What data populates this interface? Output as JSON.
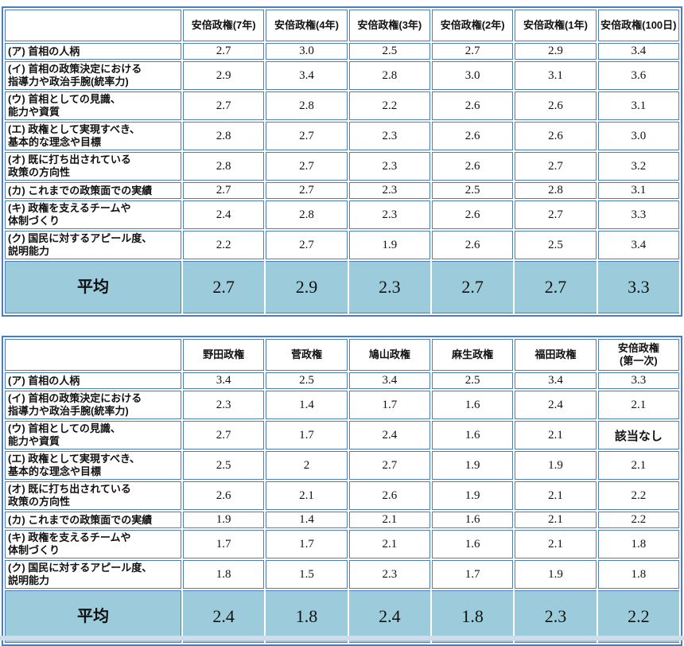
{
  "colors": {
    "table_border": "#4a7ebb",
    "average_row_background": "#9cccdb",
    "bottom_bar": "#cfdce9",
    "cell_background": "#ffffff"
  },
  "chart_data": [
    {
      "type": "table",
      "title": "",
      "columns": [
        "",
        "安倍政権(7年)",
        "安倍政権(4年)",
        "安倍政権(3年)",
        "安倍政権(2年)",
        "安倍政権(1年)",
        "安倍政権(100日)"
      ],
      "rows": [
        {
          "label": "(ア) 首相の人柄",
          "values": [
            "2.7",
            "3.0",
            "2.5",
            "2.7",
            "2.9",
            "3.4"
          ]
        },
        {
          "label": "(イ) 首相の政策決定における\n指導力や政治手腕(統率力)",
          "values": [
            "2.9",
            "3.4",
            "2.8",
            "3.0",
            "3.1",
            "3.6"
          ]
        },
        {
          "label": "(ウ) 首相としての見識、\n能力や資質",
          "values": [
            "2.7",
            "2.8",
            "2.2",
            "2.6",
            "2.6",
            "3.1"
          ]
        },
        {
          "label": "(エ) 政権として実現すべき、\n基本的な理念や目標",
          "values": [
            "2.8",
            "2.7",
            "2.3",
            "2.6",
            "2.6",
            "3.0"
          ]
        },
        {
          "label": "(オ) 既に打ち出されている\n政策の方向性",
          "values": [
            "2.8",
            "2.7",
            "2.3",
            "2.6",
            "2.7",
            "3.2"
          ]
        },
        {
          "label": "(カ) これまでの政策面での実績",
          "values": [
            "2.7",
            "2.7",
            "2.3",
            "2.5",
            "2.8",
            "3.1"
          ]
        },
        {
          "label": "(キ) 政権を支えるチームや\n体制づくり",
          "values": [
            "2.4",
            "2.8",
            "2.3",
            "2.6",
            "2.7",
            "3.3"
          ]
        },
        {
          "label": "(ク) 国民に対するアピール度、\n説明能力",
          "values": [
            "2.2",
            "2.7",
            "1.9",
            "2.6",
            "2.5",
            "3.4"
          ]
        }
      ],
      "avg": {
        "label": "平均",
        "values": [
          "2.7",
          "2.9",
          "2.3",
          "2.7",
          "2.7",
          "3.3"
        ]
      }
    },
    {
      "type": "table",
      "title": "",
      "columns": [
        "",
        "野田政権",
        "菅政権",
        "鳩山政権",
        "麻生政権",
        "福田政権",
        "安倍政権\n(第一次)"
      ],
      "rows": [
        {
          "label": "(ア) 首相の人柄",
          "values": [
            "3.4",
            "2.5",
            "3.4",
            "2.5",
            "3.4",
            "3.3"
          ]
        },
        {
          "label": "(イ) 首相の政策決定における\n指導力や政治手腕(統率力)",
          "values": [
            "2.3",
            "1.4",
            "1.7",
            "1.6",
            "2.4",
            "2.1"
          ]
        },
        {
          "label": "(ウ) 首相としての見識、\n能力や資質",
          "values": [
            "2.7",
            "1.7",
            "2.4",
            "1.6",
            "2.1",
            "該当なし"
          ]
        },
        {
          "label": "(エ) 政権として実現すべき、\n基本的な理念や目標",
          "values": [
            "2.5",
            "2",
            "2.7",
            "1.9",
            "1.9",
            "2.1"
          ]
        },
        {
          "label": "(オ) 既に打ち出されている\n政策の方向性",
          "values": [
            "2.6",
            "2.1",
            "2.6",
            "1.9",
            "2.1",
            "2.2"
          ]
        },
        {
          "label": "(カ) これまでの政策面での実績",
          "values": [
            "1.9",
            "1.4",
            "2.1",
            "1.6",
            "2.1",
            "2.2"
          ]
        },
        {
          "label": "(キ) 政権を支えるチームや\n体制づくり",
          "values": [
            "1.7",
            "1.7",
            "2.1",
            "1.6",
            "2.1",
            "1.8"
          ]
        },
        {
          "label": "(ク) 国民に対するアピール度、\n説明能力",
          "values": [
            "1.8",
            "1.5",
            "2.3",
            "1.7",
            "1.9",
            "1.8"
          ]
        }
      ],
      "avg": {
        "label": "平均",
        "values": [
          "2.4",
          "1.8",
          "2.4",
          "1.8",
          "2.3",
          "2.2"
        ]
      }
    }
  ]
}
